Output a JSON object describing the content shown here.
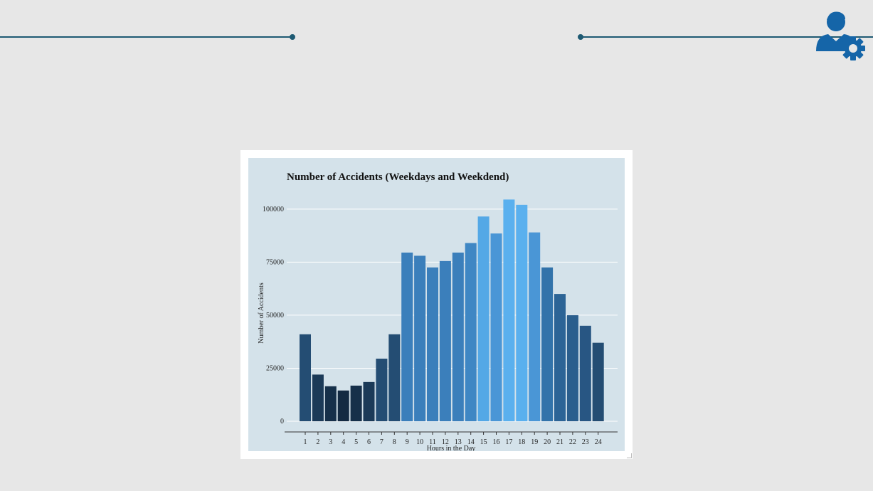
{
  "colors": {
    "background": "#e7e7e7",
    "accent_line": "#1e5a73",
    "logo": "#1565a8",
    "panel": "#d4e2ea"
  },
  "logo": {
    "icon": "user-gear-icon"
  },
  "chart_data": {
    "type": "bar",
    "title": "Number of Accidents (Weekdays and Weekdend)",
    "xlabel": "Hours in the Day",
    "ylabel": "Number of Accidents",
    "categories": [
      "1",
      "2",
      "3",
      "4",
      "5",
      "6",
      "7",
      "8",
      "9",
      "10",
      "11",
      "12",
      "13",
      "14",
      "15",
      "16",
      "17",
      "18",
      "19",
      "20",
      "21",
      "22",
      "23",
      "24"
    ],
    "values": [
      41000,
      22000,
      16500,
      14500,
      16800,
      18500,
      29500,
      41000,
      79500,
      78000,
      72500,
      75500,
      79500,
      84000,
      96500,
      88500,
      104500,
      102000,
      89000,
      72500,
      60000,
      50000,
      45000,
      37000
    ],
    "bar_colors": [
      "#244d73",
      "#1b3a58",
      "#16304a",
      "#132a42",
      "#16304a",
      "#1b3a58",
      "#244d73",
      "#244d73",
      "#3b7fbb",
      "#3b7fbb",
      "#3b7fbb",
      "#3b7fbb",
      "#3b7fbb",
      "#3f87c4",
      "#54a8e6",
      "#4a96d6",
      "#5ab0ee",
      "#5ab0ee",
      "#4a96d6",
      "#3273aa",
      "#2c6496",
      "#2a5e8d",
      "#285683",
      "#244d73"
    ],
    "ylim": [
      0,
      110000
    ],
    "yticks": [
      0,
      25000,
      50000,
      75000,
      100000
    ],
    "ytick_labels": [
      "0",
      "25000",
      "50000",
      "75000",
      "100000"
    ],
    "grid": true,
    "legend": "none"
  }
}
